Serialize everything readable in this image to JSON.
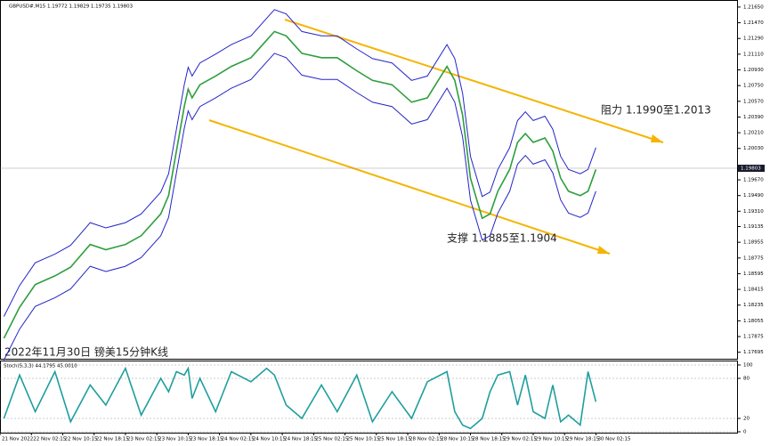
{
  "chart_data": [
    {
      "type": "line",
      "title": "GBPUSD#,M15 1.19772 1.19829 1.19735 1.19803",
      "annotations": [
        "阻力 1.1990至1.2013",
        "支撑 1.1885至1.1904",
        "2022年11月30日 镑美15分钟K线"
      ],
      "current_price": 1.19803,
      "x": [
        1,
        5,
        9,
        14,
        18,
        23,
        27,
        32,
        36,
        41,
        43,
        45,
        47,
        48,
        49,
        51,
        55,
        59,
        64,
        68,
        70,
        73,
        77,
        82,
        86,
        91,
        95,
        100,
        105,
        109,
        114,
        116,
        118,
        120,
        123,
        125,
        127,
        130,
        132,
        134,
        136,
        139,
        141,
        143,
        145,
        148,
        150,
        152
      ],
      "xlim": [
        0,
        188
      ],
      "ylim": [
        1.176,
        1.217
      ],
      "yticks": [
        {
          "value": 1.2165,
          "label": "1.21650"
        },
        {
          "value": 1.2147,
          "label": "1.21470"
        },
        {
          "value": 1.2129,
          "label": "1.21290"
        },
        {
          "value": 1.2111,
          "label": "1.21110"
        },
        {
          "value": 1.2093,
          "label": "1.20930"
        },
        {
          "value": 1.2075,
          "label": "1.20750"
        },
        {
          "value": 1.2057,
          "label": "1.20570"
        },
        {
          "value": 1.2039,
          "label": "1.20390"
        },
        {
          "value": 1.2021,
          "label": "1.20210"
        },
        {
          "value": 1.2003,
          "label": "1.20030"
        },
        {
          "value": 1.1967,
          "label": "1.19670"
        },
        {
          "value": 1.1949,
          "label": "1.19490"
        },
        {
          "value": 1.1931,
          "label": "1.19310"
        },
        1.19135,
        1.18955,
        1.18775,
        1.18595,
        1.18415,
        1.18235,
        1.18055,
        1.17875,
        1.17695
      ],
      "series": [
        {
          "color": "#2e9e3e",
          "values": [
            1.17855,
            1.1821,
            1.1847,
            1.1857,
            1.1867,
            1.1893,
            1.1887,
            1.1893,
            1.1903,
            1.1928,
            1.1949,
            1.2,
            1.2051,
            1.2071,
            1.2061,
            1.2076,
            1.2086,
            1.2097,
            1.2107,
            1.2127,
            1.2137,
            1.2132,
            1.2112,
            1.2107,
            1.2107,
            1.2092,
            1.2081,
            1.2076,
            1.2056,
            1.2061,
            1.2097,
            1.2081,
            1.2041,
            1.1969,
            1.1923,
            1.1928,
            1.1954,
            1.1979,
            1.201,
            1.202,
            1.201,
            1.2015,
            1.2,
            1.1969,
            1.1954,
            1.1949,
            1.1954,
            1.1979
          ]
        },
        {
          "color": "#2424c8",
          "values": [
            1.18105,
            1.1846,
            1.1872,
            1.1882,
            1.1892,
            1.1918,
            1.1912,
            1.1918,
            1.1928,
            1.1953,
            1.1974,
            1.2025,
            1.2076,
            1.2096,
            1.2086,
            1.2101,
            1.2111,
            1.2122,
            1.2132,
            1.2152,
            1.2162,
            1.2157,
            1.2137,
            1.2132,
            1.2132,
            1.2117,
            1.2106,
            1.2101,
            1.2081,
            1.2086,
            1.2122,
            1.2106,
            1.2066,
            1.1994,
            1.1948,
            1.1953,
            1.1979,
            1.2004,
            1.2035,
            1.2045,
            1.2035,
            1.204,
            1.2025,
            1.1994,
            1.1979,
            1.1974,
            1.1979,
            1.2004
          ]
        },
        {
          "color": "#2424c8",
          "values": [
            1.17605,
            1.1796,
            1.1822,
            1.1832,
            1.1842,
            1.1868,
            1.1862,
            1.1868,
            1.1878,
            1.1903,
            1.1924,
            1.1975,
            1.2026,
            1.2046,
            1.2036,
            1.2051,
            1.2061,
            1.2072,
            1.2082,
            1.2102,
            1.2112,
            1.2107,
            1.2087,
            1.2082,
            1.2082,
            1.2067,
            1.2056,
            1.2051,
            1.2031,
            1.2036,
            1.2072,
            1.2056,
            1.2016,
            1.1944,
            1.1898,
            1.1903,
            1.1929,
            1.1954,
            1.1985,
            1.1995,
            1.1985,
            1.199,
            1.1975,
            1.1944,
            1.1929,
            1.1924,
            1.1929,
            1.1954
          ]
        }
      ]
    },
    {
      "type": "line",
      "title": "Stoch(5,3,3) 44.1795 45.0010",
      "x": [
        1,
        5,
        9,
        14,
        18,
        23,
        27,
        32,
        36,
        41,
        43,
        45,
        47,
        48,
        49,
        51,
        55,
        59,
        64,
        68,
        70,
        73,
        77,
        82,
        86,
        91,
        95,
        100,
        105,
        109,
        114,
        116,
        118,
        120,
        123,
        125,
        127,
        130,
        132,
        134,
        136,
        139,
        141,
        143,
        145,
        148,
        150,
        152
      ],
      "xlim": [
        0,
        188
      ],
      "xticks": [
        {
          "value": 0,
          "label": "21 Nov 2022"
        },
        {
          "value": 8,
          "label": "22 Nov 02:15"
        },
        {
          "value": 16,
          "label": "22 Nov 10:15"
        },
        {
          "value": 24,
          "label": "22 Nov 18:15"
        },
        {
          "value": 32,
          "label": "23 Nov 02:15"
        },
        {
          "value": 40,
          "label": "23 Nov 10:15"
        },
        {
          "value": 48,
          "label": "23 Nov 18:15"
        },
        {
          "value": 56,
          "label": "24 Nov 02:15"
        },
        {
          "value": 64,
          "label": "24 Nov 10:15"
        },
        {
          "value": 72,
          "label": "24 Nov 18:15"
        },
        {
          "value": 80,
          "label": "25 Nov 02:15"
        },
        {
          "value": 88,
          "label": "25 Nov 10:15"
        },
        {
          "value": 96,
          "label": "25 Nov 18:15"
        },
        {
          "value": 104,
          "label": "28 Nov 02:15"
        },
        {
          "value": 112,
          "label": "28 Nov 10:15"
        },
        {
          "value": 120,
          "label": "28 Nov 18:15"
        },
        {
          "value": 128,
          "label": "29 Nov 02:15"
        },
        {
          "value": 136,
          "label": "29 Nov 10:15"
        },
        {
          "value": 144,
          "label": "29 Nov 18:15"
        },
        {
          "value": 152,
          "label": "30 Nov 02:15"
        }
      ],
      "ylim": [
        0,
        100
      ],
      "yticks": [
        100,
        80,
        20,
        0
      ],
      "series": [
        {
          "color": "#1f9e9e",
          "values": [
            20,
            85,
            30,
            90,
            15,
            70,
            40,
            95,
            25,
            80,
            60,
            90,
            85,
            95,
            50,
            80,
            30,
            90,
            75,
            95,
            85,
            40,
            20,
            70,
            30,
            85,
            15,
            60,
            20,
            75,
            90,
            30,
            10,
            5,
            20,
            60,
            85,
            90,
            40,
            85,
            30,
            20,
            70,
            15,
            25,
            10,
            90,
            45
          ]
        }
      ]
    }
  ]
}
